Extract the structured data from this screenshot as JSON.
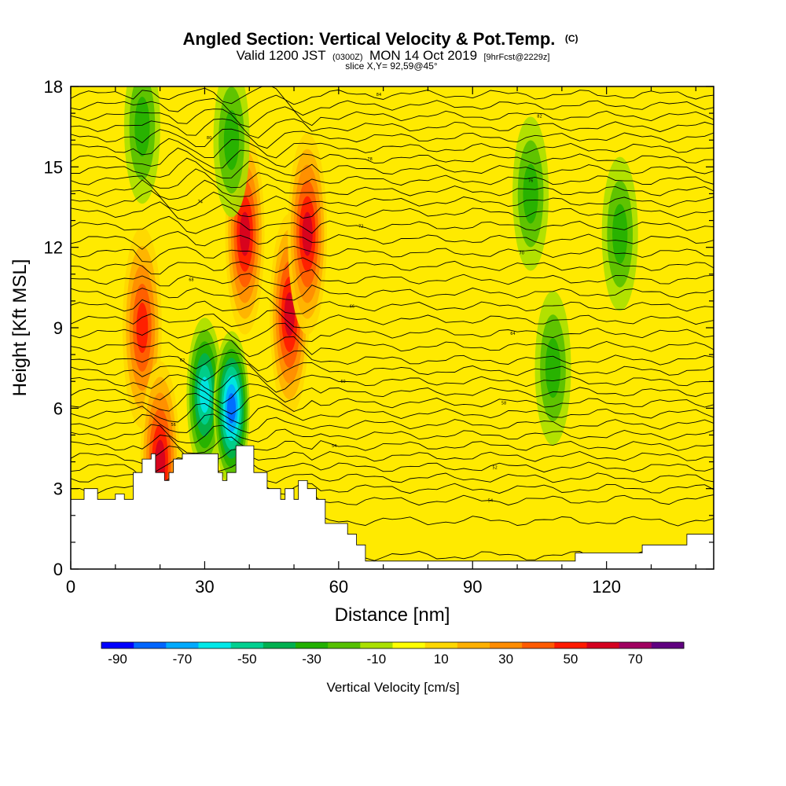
{
  "chart_data": {
    "type": "heatmap",
    "title": "Angled Section: Vertical Velocity & Pot.Temp.",
    "title_mark": "(C)",
    "subtitle": {
      "valid": "Valid 1200 JST",
      "utc": "(0300Z)",
      "date": "MON 14 Oct 2019",
      "forecast": "[9hrFcst@2229z]"
    },
    "slice_info": "slice X,Y= 92,59@45°",
    "xlabel": "Distance [nm]",
    "ylabel": "Height [Kft MSL]",
    "xlim": [
      0,
      144
    ],
    "ylim": [
      0,
      18
    ],
    "x_ticks": [
      "0",
      "30",
      "60",
      "90",
      "120"
    ],
    "y_ticks": [
      "0",
      "3",
      "6",
      "9",
      "12",
      "15",
      "18"
    ],
    "colorbar": {
      "label": "Vertical Velocity [cm/s]",
      "tick_labels": [
        "-90",
        "-70",
        "-50",
        "-30",
        "-10",
        "10",
        "30",
        "50",
        "70"
      ],
      "levels": [
        -90,
        -80,
        -70,
        -60,
        -50,
        -40,
        -30,
        -20,
        -10,
        0,
        10,
        20,
        30,
        40,
        50,
        60,
        70,
        80
      ],
      "colors": [
        "#0000ff",
        "#0066ff",
        "#00aaff",
        "#00e8e8",
        "#00d090",
        "#00b050",
        "#22b000",
        "#55c000",
        "#aae000",
        "#ffff00",
        "#ffd700",
        "#ffb000",
        "#ff8c00",
        "#ff5a00",
        "#ff1a00",
        "#d40020",
        "#a00060",
        "#600080"
      ]
    },
    "field_features": [
      {
        "kind": "updraft",
        "x": 16,
        "y": 9,
        "value": 50
      },
      {
        "kind": "updraft",
        "x": 20,
        "y": 4,
        "value": 55
      },
      {
        "kind": "downdraft",
        "x": 30,
        "y": 6.5,
        "value": -60
      },
      {
        "kind": "downdraft",
        "x": 36,
        "y": 6,
        "value": -75
      },
      {
        "kind": "updraft",
        "x": 39,
        "y": 12.5,
        "value": 55
      },
      {
        "kind": "updraft",
        "x": 49,
        "y": 9.5,
        "value": 55
      },
      {
        "kind": "updraft",
        "x": 53,
        "y": 12.5,
        "value": 55
      },
      {
        "kind": "downdraft",
        "x": 16,
        "y": 16.5,
        "value": -25
      },
      {
        "kind": "downdraft",
        "x": 36,
        "y": 16,
        "value": -30
      },
      {
        "kind": "downdraft",
        "x": 103,
        "y": 14,
        "value": -25
      },
      {
        "kind": "downdraft",
        "x": 123,
        "y": 12.5,
        "value": -25
      },
      {
        "kind": "downdraft",
        "x": 108,
        "y": 7.5,
        "value": -25
      }
    ],
    "terrain_profile": [
      [
        0,
        2.6
      ],
      [
        3,
        2.6
      ],
      [
        3,
        3.0
      ],
      [
        6,
        3.0
      ],
      [
        6,
        2.6
      ],
      [
        10,
        2.6
      ],
      [
        10,
        2.8
      ],
      [
        12,
        2.8
      ],
      [
        12,
        2.6
      ],
      [
        14,
        2.6
      ],
      [
        14,
        3.6
      ],
      [
        16,
        3.6
      ],
      [
        16,
        4.1
      ],
      [
        18,
        4.1
      ],
      [
        18,
        4.3
      ],
      [
        19,
        4.3
      ],
      [
        19,
        3.6
      ],
      [
        21,
        3.6
      ],
      [
        21,
        3.3
      ],
      [
        22,
        3.3
      ],
      [
        22,
        3.6
      ],
      [
        23,
        3.6
      ],
      [
        23,
        4.1
      ],
      [
        25,
        4.1
      ],
      [
        25,
        4.3
      ],
      [
        33,
        4.3
      ],
      [
        33,
        3.6
      ],
      [
        34,
        3.6
      ],
      [
        34,
        3.3
      ],
      [
        35,
        3.3
      ],
      [
        35,
        3.6
      ],
      [
        37,
        3.6
      ],
      [
        37,
        4.6
      ],
      [
        41,
        4.6
      ],
      [
        41,
        3.6
      ],
      [
        44,
        3.6
      ],
      [
        44,
        3.0
      ],
      [
        47,
        3.0
      ],
      [
        47,
        2.6
      ],
      [
        48,
        2.6
      ],
      [
        48,
        3.0
      ],
      [
        50,
        3.0
      ],
      [
        50,
        2.6
      ],
      [
        51,
        2.6
      ],
      [
        51,
        3.3
      ],
      [
        53,
        3.3
      ],
      [
        53,
        3.0
      ],
      [
        55,
        3.0
      ],
      [
        55,
        2.6
      ],
      [
        57,
        2.6
      ],
      [
        57,
        1.7
      ],
      [
        62,
        1.7
      ],
      [
        62,
        1.3
      ],
      [
        64,
        1.3
      ],
      [
        64,
        0.9
      ],
      [
        66,
        0.9
      ],
      [
        66,
        0.3
      ],
      [
        113,
        0.3
      ],
      [
        113,
        0.6
      ],
      [
        128,
        0.6
      ],
      [
        128,
        0.9
      ],
      [
        138,
        0.9
      ],
      [
        138,
        1.3
      ],
      [
        144,
        1.3
      ]
    ],
    "isentropes": [
      {
        "y0": 0.5,
        "y1": 0.5,
        "label": ""
      },
      {
        "y0": 1.8,
        "y1": 1.8,
        "label": ""
      },
      {
        "y0": 2.5,
        "y1": 2.6,
        "label": "54"
      },
      {
        "y0": 3.0,
        "y1": 3.0,
        "label": "50"
      },
      {
        "y0": 3.4,
        "y1": 3.4,
        "label": ""
      },
      {
        "y0": 3.8,
        "y1": 3.8,
        "label": "52"
      },
      {
        "y0": 4.2,
        "y1": 4.2,
        "label": ""
      },
      {
        "y0": 4.6,
        "y1": 4.6,
        "label": "54"
      },
      {
        "y0": 5.0,
        "y1": 5.0,
        "label": ""
      },
      {
        "y0": 5.4,
        "y1": 5.4,
        "label": "56"
      },
      {
        "y0": 5.8,
        "y1": 5.8,
        "label": ""
      },
      {
        "y0": 6.2,
        "y1": 6.2,
        "label": "58"
      },
      {
        "y0": 6.6,
        "y1": 6.6,
        "label": ""
      },
      {
        "y0": 7.0,
        "y1": 7.0,
        "label": "60"
      },
      {
        "y0": 7.4,
        "y1": 7.4,
        "label": ""
      },
      {
        "y0": 7.8,
        "y1": 7.8,
        "label": "62"
      },
      {
        "y0": 8.3,
        "y1": 8.3,
        "label": ""
      },
      {
        "y0": 8.8,
        "y1": 8.8,
        "label": "64"
      },
      {
        "y0": 9.3,
        "y1": 9.3,
        "label": ""
      },
      {
        "y0": 9.8,
        "y1": 9.8,
        "label": "66"
      },
      {
        "y0": 10.3,
        "y1": 10.3,
        "label": ""
      },
      {
        "y0": 10.8,
        "y1": 10.8,
        "label": "68"
      },
      {
        "y0": 11.3,
        "y1": 11.3,
        "label": ""
      },
      {
        "y0": 11.8,
        "y1": 11.8,
        "label": "70"
      },
      {
        "y0": 12.3,
        "y1": 12.3,
        "label": ""
      },
      {
        "y0": 12.8,
        "y1": 12.8,
        "label": "72"
      },
      {
        "y0": 13.3,
        "y1": 13.3,
        "label": ""
      },
      {
        "y0": 13.7,
        "y1": 13.7,
        "label": "74"
      },
      {
        "y0": 14.1,
        "y1": 14.1,
        "label": ""
      },
      {
        "y0": 14.5,
        "y1": 14.5,
        "label": "76"
      },
      {
        "y0": 14.9,
        "y1": 14.9,
        "label": ""
      },
      {
        "y0": 15.3,
        "y1": 15.3,
        "label": "78"
      },
      {
        "y0": 15.7,
        "y1": 15.7,
        "label": ""
      },
      {
        "y0": 16.1,
        "y1": 16.1,
        "label": "80"
      },
      {
        "y0": 16.5,
        "y1": 16.5,
        "label": ""
      },
      {
        "y0": 16.9,
        "y1": 16.9,
        "label": "82"
      },
      {
        "y0": 17.3,
        "y1": 17.3,
        "label": ""
      },
      {
        "y0": 17.7,
        "y1": 17.7,
        "label": "84"
      }
    ]
  }
}
